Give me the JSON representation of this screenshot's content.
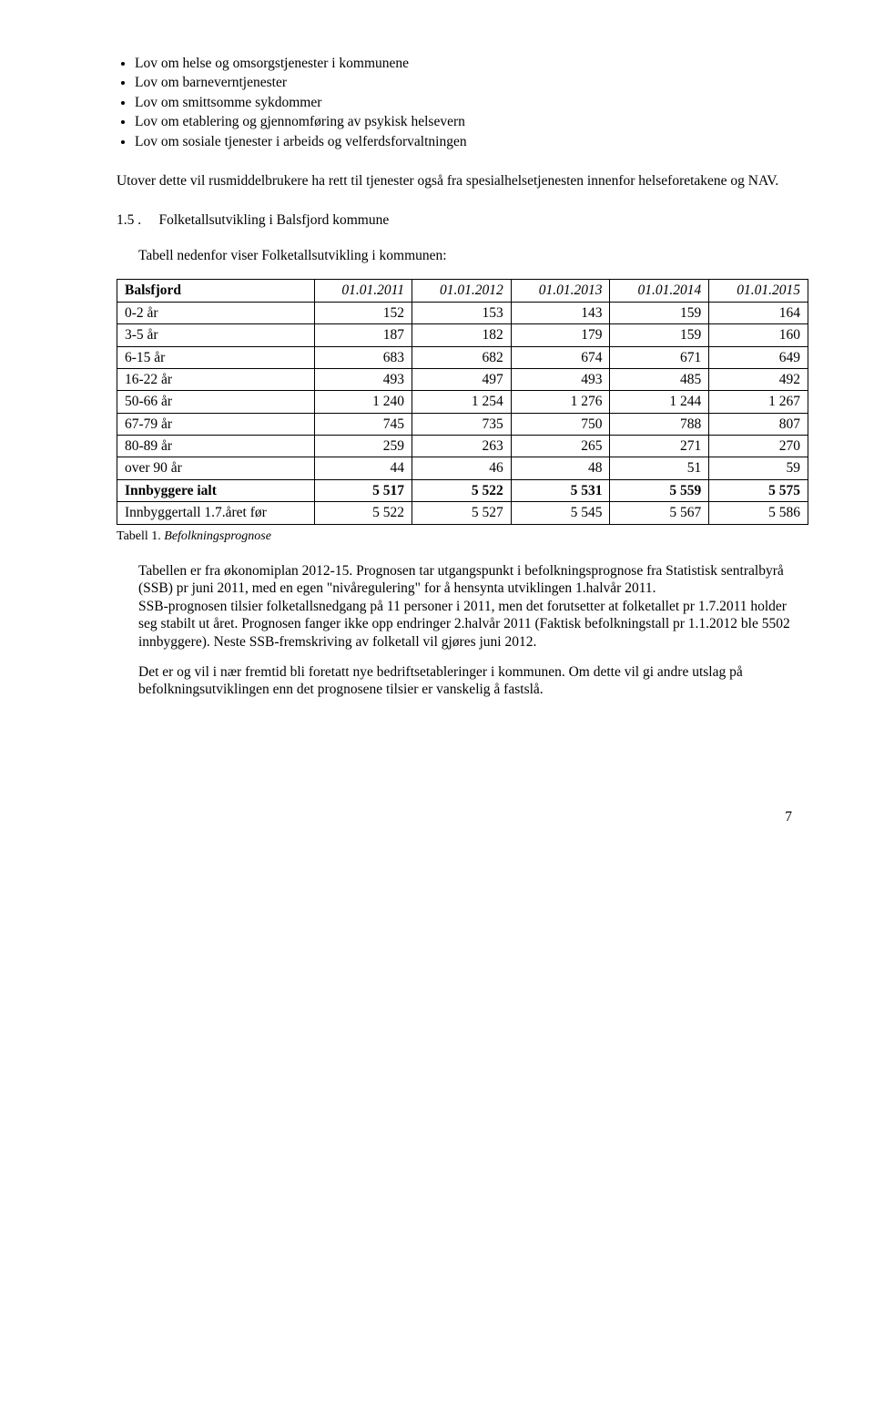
{
  "bullets": [
    "Lov om helse og omsorgstjenester i kommunene",
    "Lov om barneverntjenester",
    "Lov om smittsomme sykdommer",
    "Lov om etablering og gjennomføring av psykisk helsevern",
    "Lov om sosiale tjenester i arbeids og velferdsforvaltningen"
  ],
  "para_intro": "Utover dette vil rusmiddelbrukere ha rett til tjenester også fra spesialhelsetjenesten innenfor helseforetakene og NAV.",
  "section_number": "1.5 .",
  "section_title": "Folketallsutvikling  i Balsfjord kommune",
  "table_intro": "Tabell nedenfor viser Folketallsutvikling i kommunen:",
  "table": {
    "corner_label": "Balsfjord",
    "years": [
      "01.01.2011",
      "01.01.2012",
      "01.01.2013",
      "01.01.2014",
      "01.01.2015"
    ],
    "rows": [
      {
        "label": "0-2 år",
        "vals": [
          "152",
          "153",
          "143",
          "159",
          "164"
        ],
        "bold": false
      },
      {
        "label": "3-5 år",
        "vals": [
          "187",
          "182",
          "179",
          "159",
          "160"
        ],
        "bold": false
      },
      {
        "label": "6-15 år",
        "vals": [
          "683",
          "682",
          "674",
          "671",
          "649"
        ],
        "bold": false
      },
      {
        "label": "16-22 år",
        "vals": [
          "493",
          "497",
          "493",
          "485",
          "492"
        ],
        "bold": false
      },
      {
        "label": "50-66 år",
        "vals": [
          "1 240",
          "1 254",
          "1 276",
          "1 244",
          "1 267"
        ],
        "bold": false
      },
      {
        "label": "67-79 år",
        "vals": [
          "745",
          "735",
          "750",
          "788",
          "807"
        ],
        "bold": false
      },
      {
        "label": "80-89 år",
        "vals": [
          "259",
          "263",
          "265",
          "271",
          "270"
        ],
        "bold": false
      },
      {
        "label": "over 90 år",
        "vals": [
          "44",
          "46",
          "48",
          "51",
          "59"
        ],
        "bold": false
      },
      {
        "label": "Innbyggere ialt",
        "vals": [
          "5 517",
          "5 522",
          "5 531",
          "5 559",
          "5 575"
        ],
        "bold": true
      },
      {
        "label": "Innbyggertall 1.7.året før",
        "vals": [
          "5 522",
          "5 527",
          "5 545",
          "5 567",
          "5 586"
        ],
        "bold": false
      }
    ]
  },
  "caption_prefix": "Tabell 1. ",
  "caption_italic": "Befolkningsprognose",
  "after_para_1": "Tabellen er fra økonomiplan 2012-15. Prognosen tar utgangspunkt i befolkningsprognose fra Statistisk sentralbyrå (SSB) pr juni 2011, med en egen \"nivåregulering\" for å hensynta utviklingen 1.halvår 2011.",
  "after_para_1b": "SSB-prognosen tilsier folketallsnedgang på 11 personer i 2011, men det forutsetter at folketallet pr 1.7.2011 holder seg stabilt ut året. Prognosen fanger ikke opp endringer 2.halvår 2011 (Faktisk befolkningstall pr 1.1.2012 ble 5502 innbyggere). Neste SSB-fremskriving av folketall vil gjøres juni 2012.",
  "after_para_2": "Det er og vil i nær fremtid bli foretatt nye bedriftsetableringer i kommunen. Om dette vil gi andre utslag på befolkningsutviklingen enn det prognosene tilsier er vanskelig å fastslå.",
  "page_number": "7"
}
